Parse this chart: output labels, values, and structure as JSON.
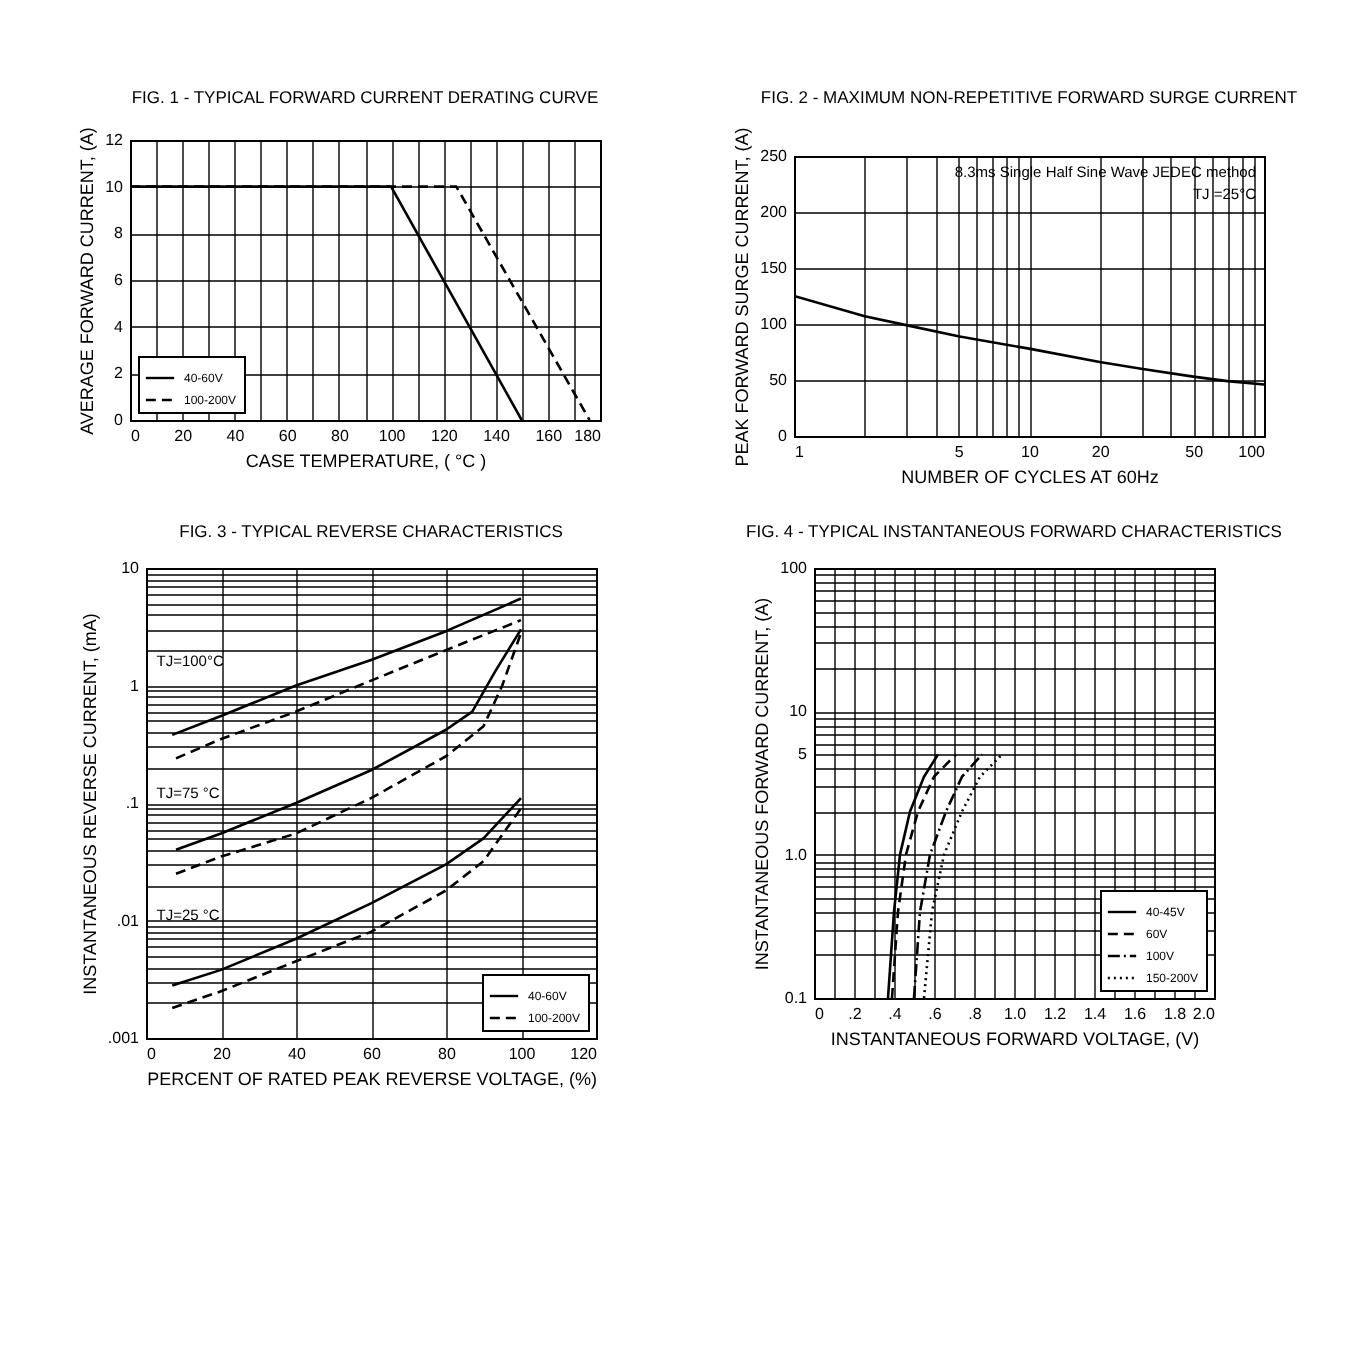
{
  "chart_data": [
    {
      "type": "line",
      "title": "FIG. 1 - TYPICAL FORWARD CURRENT DERATING CURVE",
      "xlabel": "CASE TEMPERATURE, ( °C )",
      "ylabel": "AVERAGE FORWARD CURRENT, (A)",
      "xlim": [
        0,
        180
      ],
      "ylim": [
        0,
        12
      ],
      "xticks": [
        0,
        {
          "value": 10,
          "label": null
        },
        20,
        {
          "value": 30,
          "label": null
        },
        40,
        {
          "value": 50,
          "label": null
        },
        60,
        {
          "value": 70,
          "label": null
        },
        80,
        {
          "value": 90,
          "label": null
        },
        100,
        {
          "value": 110,
          "label": null
        },
        120,
        {
          "value": 130,
          "label": null
        },
        140,
        {
          "value": 150,
          "label": null
        },
        160,
        {
          "value": 170,
          "label": null
        },
        180
      ],
      "yticks": [
        0,
        2,
        4,
        6,
        8,
        10,
        12
      ],
      "grid": true,
      "legend": "bottom left",
      "series": [
        {
          "name": "40-60V",
          "color": "#000000",
          "line_style": "solid",
          "x": [
            0,
            100,
            150
          ],
          "values": [
            10,
            10,
            0
          ]
        },
        {
          "name": "100-200V",
          "color": "#000000",
          "line_style": "dashed",
          "x": [
            0,
            125,
            176
          ],
          "values": [
            10,
            10,
            0
          ]
        }
      ]
    },
    {
      "type": "line",
      "title": "FIG. 2 - MAXIMUM NON-REPETITIVE FORWARD SURGE CURRENT",
      "xlabel": "NUMBER OF CYCLES AT 60Hz",
      "ylabel": "PEAK FORWARD SURGE CURRENT, (A)",
      "log": "x",
      "xlim": [
        1,
        100
      ],
      "ylim": [
        0,
        250
      ],
      "xticks": [
        1,
        {
          "value": 2,
          "label": null
        },
        {
          "value": 3,
          "label": null
        },
        {
          "value": 4,
          "label": null
        },
        5,
        {
          "value": 6,
          "label": null
        },
        {
          "value": 7,
          "label": null
        },
        {
          "value": 8,
          "label": null
        },
        {
          "value": 9,
          "label": null
        },
        10,
        20,
        {
          "value": 30,
          "label": null
        },
        {
          "value": 40,
          "label": null
        },
        50,
        {
          "value": 60,
          "label": null
        },
        {
          "value": 70,
          "label": null
        },
        {
          "value": 80,
          "label": null
        },
        {
          "value": 90,
          "label": null
        },
        100
      ],
      "yticks": [
        0,
        50,
        100,
        150,
        200,
        250
      ],
      "grid": true,
      "annotations": [
        "8.3ms Single Half Sine Wave JEDEC method",
        "TJ =25°C"
      ],
      "series": [
        {
          "color": "#000000",
          "line_style": "solid",
          "x": [
            1,
            2,
            3,
            5,
            10,
            20,
            30,
            50,
            70,
            100
          ],
          "values": [
            125,
            107,
            99,
            89,
            78,
            66,
            60,
            53,
            49,
            46
          ]
        }
      ]
    },
    {
      "type": "line",
      "title": "FIG. 3 - TYPICAL REVERSE CHARACTERISTICS",
      "xlabel": "PERCENT OF RATED PEAK REVERSE VOLTAGE, (%)",
      "ylabel": "INSTANTANEOUS REVERSE CURRENT, (mA)",
      "log": "y",
      "xlim": [
        0,
        120
      ],
      "ylim": [
        0.001,
        10
      ],
      "xticks": [
        0,
        20,
        40,
        60,
        80,
        100,
        120
      ],
      "yticks": [
        {
          "value": 0.001,
          "label": ".001"
        },
        {
          "value": 0.002,
          "label": null
        },
        {
          "value": 0.003,
          "label": null
        },
        {
          "value": 0.004,
          "label": null
        },
        {
          "value": 0.005,
          "label": null
        },
        {
          "value": 0.006,
          "label": null
        },
        {
          "value": 0.007,
          "label": null
        },
        {
          "value": 0.008,
          "label": null
        },
        {
          "value": 0.009,
          "label": null
        },
        {
          "value": 0.01,
          "label": ".01"
        },
        {
          "value": 0.02,
          "label": null
        },
        {
          "value": 0.03,
          "label": null
        },
        {
          "value": 0.04,
          "label": null
        },
        {
          "value": 0.05,
          "label": null
        },
        {
          "value": 0.06,
          "label": null
        },
        {
          "value": 0.07,
          "label": null
        },
        {
          "value": 0.08,
          "label": null
        },
        {
          "value": 0.09,
          "label": null
        },
        {
          "value": 0.1,
          "label": ".1"
        },
        {
          "value": 0.2,
          "label": null
        },
        {
          "value": 0.3,
          "label": null
        },
        {
          "value": 0.4,
          "label": null
        },
        {
          "value": 0.5,
          "label": null
        },
        {
          "value": 0.6,
          "label": null
        },
        {
          "value": 0.7,
          "label": null
        },
        {
          "value": 0.8,
          "label": null
        },
        {
          "value": 0.9,
          "label": null
        },
        1,
        {
          "value": 2,
          "label": null
        },
        {
          "value": 3,
          "label": null
        },
        {
          "value": 4,
          "label": null
        },
        {
          "value": 5,
          "label": null
        },
        {
          "value": 6,
          "label": null
        },
        {
          "value": 7,
          "label": null
        },
        {
          "value": 8,
          "label": null
        },
        {
          "value": 9,
          "label": null
        },
        10
      ],
      "grid": true,
      "legend": "bottom right",
      "annotations": [
        "TJ=100°C",
        "TJ=75 °C",
        "TJ=25 °C"
      ],
      "series": [
        {
          "name": "40-60V",
          "color": "#000000",
          "line_style": "solid",
          "x": [
            7,
            20,
            40,
            60,
            80,
            100
          ],
          "values": [
            0.38,
            0.55,
            1.0,
            1.65,
            2.9,
            5.5
          ]
        },
        {
          "name": "100-200V",
          "color": "#000000",
          "line_style": "dashed",
          "x": [
            8,
            20,
            40,
            60,
            80,
            100
          ],
          "values": [
            0.24,
            0.35,
            0.6,
            1.1,
            2.0,
            3.6
          ]
        },
        {
          "color": "#000000",
          "line_style": "solid",
          "x": [
            8,
            20,
            40,
            60,
            80,
            87,
            93,
            100
          ],
          "values": [
            0.04,
            0.055,
            0.1,
            0.19,
            0.42,
            0.6,
            1.3,
            3.0
          ]
        },
        {
          "color": "#000000",
          "line_style": "dashed",
          "x": [
            8,
            20,
            40,
            60,
            80,
            90,
            95,
            100
          ],
          "values": [
            0.025,
            0.035,
            0.055,
            0.11,
            0.25,
            0.45,
            1.0,
            2.8
          ]
        },
        {
          "color": "#000000",
          "line_style": "solid",
          "x": [
            7,
            20,
            40,
            60,
            80,
            90,
            100
          ],
          "values": [
            0.0028,
            0.0038,
            0.007,
            0.014,
            0.03,
            0.05,
            0.11
          ]
        },
        {
          "color": "#000000",
          "line_style": "dashed",
          "x": [
            7,
            20,
            40,
            60,
            80,
            90,
            100
          ],
          "values": [
            0.0018,
            0.0025,
            0.0045,
            0.008,
            0.018,
            0.032,
            0.09
          ]
        }
      ]
    },
    {
      "type": "line",
      "title": "FIG. 4 - TYPICAL INSTANTANEOUS FORWARD CHARACTERISTICS",
      "xlabel": "INSTANTANEOUS FORWARD VOLTAGE, (V)",
      "ylabel": "INSTANTANEOUS FORWARD CURRENT, (A)",
      "log": "y",
      "xlim": [
        0,
        2
      ],
      "ylim": [
        0.1,
        100
      ],
      "xticks": [
        0,
        {
          "value": 0.1,
          "label": null
        },
        {
          "value": 0.2,
          "label": ".2"
        },
        {
          "value": 0.3,
          "label": null
        },
        {
          "value": 0.4,
          "label": ".4"
        },
        {
          "value": 0.5,
          "label": null
        },
        {
          "value": 0.6,
          "label": ".6"
        },
        {
          "value": 0.7,
          "label": null
        },
        {
          "value": 0.8,
          "label": ".8"
        },
        {
          "value": 0.9,
          "label": null
        },
        {
          "value": 1,
          "label": "1.0"
        },
        {
          "value": 1.1,
          "label": null
        },
        1.2,
        {
          "value": 1.3,
          "label": null
        },
        1.4,
        {
          "value": 1.5,
          "label": null
        },
        1.6,
        {
          "value": 1.7,
          "label": null
        },
        1.8,
        {
          "value": 1.9,
          "label": null
        },
        {
          "value": 2,
          "label": "2.0"
        }
      ],
      "yticks": [
        0.1,
        {
          "value": 0.2,
          "label": null
        },
        {
          "value": 0.3,
          "label": null
        },
        {
          "value": 0.4,
          "label": null
        },
        {
          "value": 0.5,
          "label": null
        },
        {
          "value": 0.6,
          "label": null
        },
        {
          "value": 0.7,
          "label": null
        },
        {
          "value": 0.8,
          "label": null
        },
        {
          "value": 0.9,
          "label": null
        },
        {
          "value": 1,
          "label": "1.0"
        },
        {
          "value": 2,
          "label": null
        },
        {
          "value": 3,
          "label": null
        },
        {
          "value": 4,
          "label": null
        },
        5,
        {
          "value": 6,
          "label": null
        },
        {
          "value": 7,
          "label": null
        },
        {
          "value": 8,
          "label": null
        },
        {
          "value": 9,
          "label": null
        },
        10,
        {
          "value": 20,
          "label": null
        },
        {
          "value": 30,
          "label": null
        },
        {
          "value": 40,
          "label": null
        },
        {
          "value": 50,
          "label": null
        },
        {
          "value": 60,
          "label": null
        },
        {
          "value": 70,
          "label": null
        },
        {
          "value": 80,
          "label": null
        },
        {
          "value": 90,
          "label": null
        },
        100
      ],
      "grid": true,
      "legend": "bottom right",
      "series": [
        {
          "name": "40-45V",
          "color": "#000000",
          "line_style": "solid",
          "x": [
            0.37,
            0.4,
            0.43,
            0.48,
            0.55,
            0.62
          ],
          "values": [
            0.1,
            0.4,
            1.0,
            2.0,
            3.5,
            5
          ]
        },
        {
          "name": "60V",
          "color": "#000000",
          "line_style": "dashed",
          "x": [
            0.39,
            0.42,
            0.46,
            0.52,
            0.6,
            0.71
          ],
          "values": [
            0.1,
            0.4,
            1.0,
            2.0,
            3.5,
            5
          ]
        },
        {
          "name": "100V",
          "color": "#000000",
          "line_style": "dashdot",
          "x": [
            0.5,
            0.53,
            0.58,
            0.66,
            0.74,
            0.84
          ],
          "values": [
            0.1,
            0.4,
            1.0,
            2.0,
            3.5,
            5
          ]
        },
        {
          "name": "150-200V",
          "color": "#000000",
          "line_style": "dotted",
          "x": [
            0.55,
            0.59,
            0.65,
            0.74,
            0.83,
            0.94
          ],
          "values": [
            0.1,
            0.4,
            1.0,
            2.0,
            3.5,
            5
          ]
        }
      ]
    }
  ]
}
